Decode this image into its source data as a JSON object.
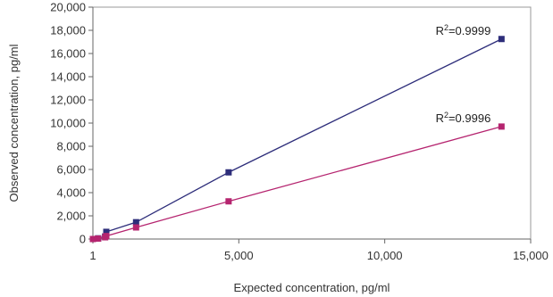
{
  "chart_data": {
    "type": "scatter",
    "xlabel": "Expected concentration, pg/ml",
    "ylabel": "Observed concentration, pg/ml",
    "xlim": [
      1,
      15000
    ],
    "ylim": [
      0,
      20000
    ],
    "x_ticks": [
      {
        "value": 1,
        "label": "1"
      },
      {
        "value": 5000,
        "label": "5,000"
      },
      {
        "value": 10000,
        "label": "10,000"
      },
      {
        "value": 15000,
        "label": "15,000"
      }
    ],
    "y_ticks": [
      {
        "value": 0,
        "label": "0"
      },
      {
        "value": 2000,
        "label": "2,000"
      },
      {
        "value": 4000,
        "label": "4,000"
      },
      {
        "value": 6000,
        "label": "6,000"
      },
      {
        "value": 8000,
        "label": "8,000"
      },
      {
        "value": 10000,
        "label": "10,000"
      },
      {
        "value": 12000,
        "label": "12,000"
      },
      {
        "value": 14000,
        "label": "14,000"
      },
      {
        "value": 16000,
        "label": "16,000"
      },
      {
        "value": 18000,
        "label": "18,000"
      },
      {
        "value": 20000,
        "label": "20,000"
      }
    ],
    "grid": false,
    "legend": "none",
    "series": [
      {
        "color": "#2d2d7a",
        "points": [
          {
            "x": 1,
            "y": 0
          },
          {
            "x": 180,
            "y": 60
          },
          {
            "x": 420,
            "y": 220
          },
          {
            "x": 460,
            "y": 620
          },
          {
            "x": 1480,
            "y": 1450
          },
          {
            "x": 4650,
            "y": 5750
          },
          {
            "x": 14000,
            "y": 17250
          }
        ],
        "r2_prefix": "R",
        "r2_exp": "2",
        "r2_value": "=0.9999"
      },
      {
        "color": "#b5246f",
        "points": [
          {
            "x": 1,
            "y": 0
          },
          {
            "x": 180,
            "y": 40
          },
          {
            "x": 420,
            "y": 150
          },
          {
            "x": 460,
            "y": 260
          },
          {
            "x": 1480,
            "y": 1000
          },
          {
            "x": 4650,
            "y": 3250
          },
          {
            "x": 14000,
            "y": 9700
          }
        ],
        "r2_prefix": "R",
        "r2_exp": "2",
        "r2_value": "=0.9996"
      }
    ]
  }
}
